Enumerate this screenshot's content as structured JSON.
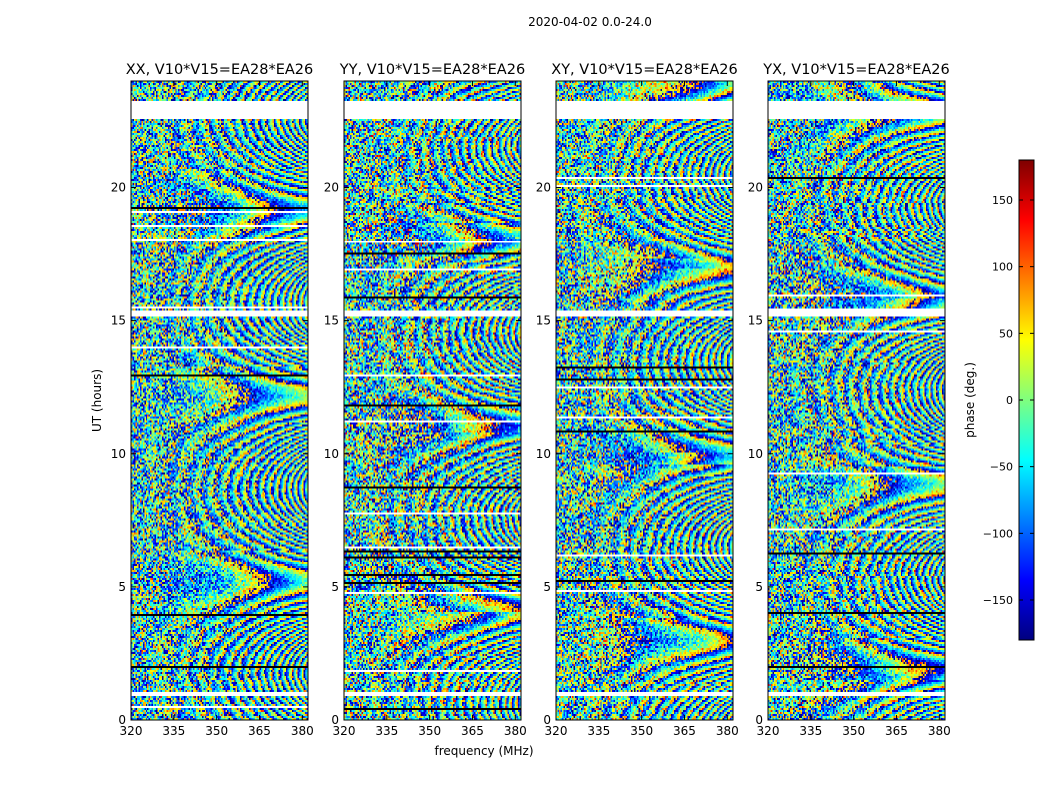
{
  "figure": {
    "title": "2020-04-02 0.0-24.0"
  },
  "colorbar": {
    "label": "phase (deg.)",
    "range": [
      -180,
      180
    ],
    "ticks": [
      150,
      100,
      50,
      0,
      -50,
      -100,
      -150
    ],
    "tick_labels": [
      "150",
      "100",
      "50",
      "0",
      "−50",
      "−100",
      "−150"
    ],
    "colors": [
      "#00007f",
      "#0000ff",
      "#007fff",
      "#00ffff",
      "#7fff7f",
      "#ffff00",
      "#ff7f00",
      "#ff0000",
      "#7f0000"
    ]
  },
  "chart_data": [
    {
      "type": "heatmap",
      "title": "XX, V10*V15=EA28*EA26",
      "xlabel": "",
      "ylabel": "UT (hours)",
      "xlim": [
        320,
        382
      ],
      "ylim": [
        0,
        24
      ],
      "xticks": [
        320,
        335,
        350,
        365,
        380
      ],
      "xtick_labels": [
        "320",
        "335",
        "350",
        "365",
        "380"
      ],
      "yticks": [
        0,
        5,
        10,
        15,
        20
      ],
      "ytick_labels": [
        "0",
        "5",
        "10",
        "15",
        "20"
      ],
      "values": "phase (deg.)",
      "seed": 11,
      "tint": 0.35
    },
    {
      "type": "heatmap",
      "title": "YY, V10*V15=EA28*EA26",
      "xlabel": "frequency (MHz)",
      "ylabel": "",
      "xlim": [
        320,
        382
      ],
      "ylim": [
        0,
        24
      ],
      "xticks": [
        320,
        335,
        350,
        365,
        380
      ],
      "xtick_labels": [
        "320",
        "335",
        "350",
        "365",
        "380"
      ],
      "yticks": [
        0,
        5,
        10,
        15,
        20
      ],
      "ytick_labels": [
        "0",
        "5",
        "10",
        "15",
        "20"
      ],
      "values": "phase (deg.)",
      "seed": 23,
      "tint": 0.75
    },
    {
      "type": "heatmap",
      "title": "XY, V10*V15=EA28*EA26",
      "xlabel": "",
      "ylabel": "",
      "xlim": [
        320,
        382
      ],
      "ylim": [
        0,
        24
      ],
      "xticks": [
        320,
        335,
        350,
        365,
        380
      ],
      "xtick_labels": [
        "320",
        "335",
        "350",
        "365",
        "380"
      ],
      "yticks": [
        0,
        5,
        10,
        15,
        20
      ],
      "ytick_labels": [
        "0",
        "5",
        "10",
        "15",
        "20"
      ],
      "values": "phase (deg.)",
      "seed": 37,
      "tint": 0.5
    },
    {
      "type": "heatmap",
      "title": "YX, V10*V15=EA28*EA26",
      "xlabel": "",
      "ylabel": "",
      "xlim": [
        320,
        382
      ],
      "ylim": [
        0,
        24
      ],
      "xticks": [
        320,
        335,
        350,
        365,
        380
      ],
      "xtick_labels": [
        "320",
        "335",
        "350",
        "365",
        "380"
      ],
      "yticks": [
        0,
        5,
        10,
        15,
        20
      ],
      "ytick_labels": [
        "0",
        "5",
        "10",
        "15",
        "20"
      ],
      "values": "phase (deg.)",
      "seed": 53,
      "tint": 0.5
    }
  ]
}
